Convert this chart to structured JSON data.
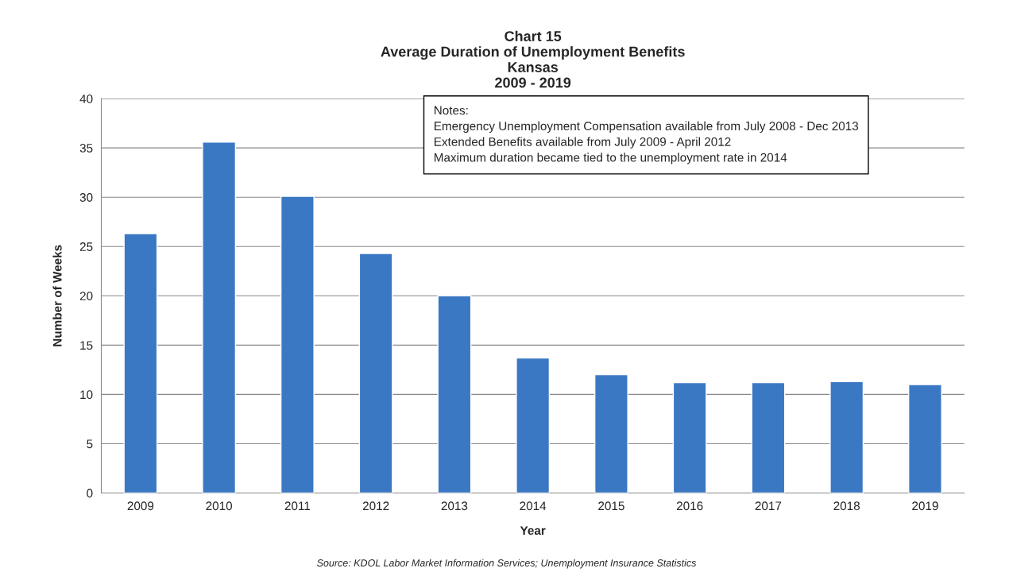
{
  "chart_data": {
    "type": "bar",
    "title": "Chart 15\nAverage Duration of Unemployment Benefits\nKansas\n2009 - 2019",
    "xlabel": "Year",
    "ylabel": "Number of Weeks",
    "categories": [
      "2009",
      "2010",
      "2011",
      "2012",
      "2013",
      "2014",
      "2015",
      "2016",
      "2017",
      "2018",
      "2019"
    ],
    "values": [
      26.3,
      35.6,
      30.1,
      24.3,
      20.0,
      13.7,
      12.0,
      11.2,
      11.2,
      11.3,
      11.0
    ],
    "color": "#3a78c4",
    "ylim": [
      0,
      40
    ],
    "yticks": [
      0,
      5,
      10,
      15,
      20,
      25,
      30,
      35,
      40
    ],
    "grid": "y",
    "annotations": [
      "Notes:\nEmergency Unemployment Compensation available from July 2008 - Dec 2013\nExtended Benefits available from July 2009 - April 2012\nMaximum duration became tied to the unemployment rate in 2014",
      "Source: KDOL Labor Market Information Services; Unemployment Insurance Statistics"
    ]
  }
}
